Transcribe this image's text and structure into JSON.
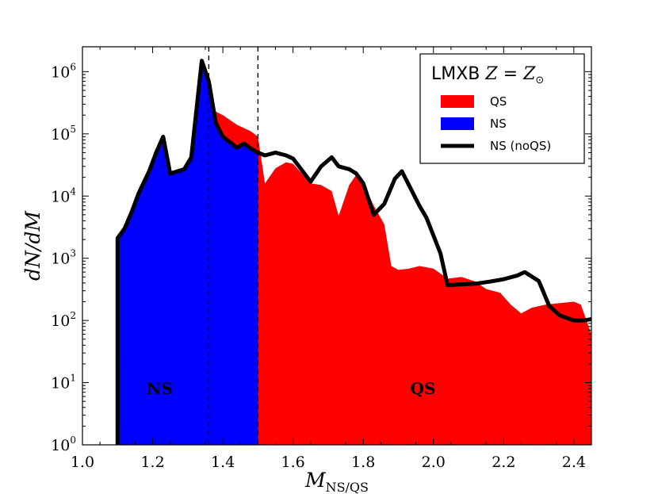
{
  "chart_data": {
    "type": "area",
    "xlabel_main": "M",
    "xlabel_sub": "NS/QS",
    "ylabel": "dN/dM",
    "xlim": [
      1.0,
      2.45
    ],
    "ylim_log10": [
      0,
      6.4
    ],
    "yscale": "log",
    "x_ticks": [
      "1.0",
      "1.2",
      "1.4",
      "1.6",
      "1.8",
      "2.0",
      "2.2",
      "2.4"
    ],
    "y_ticks": [
      {
        "base": "10",
        "exp": "0"
      },
      {
        "base": "10",
        "exp": "1"
      },
      {
        "base": "10",
        "exp": "2"
      },
      {
        "base": "10",
        "exp": "3"
      },
      {
        "base": "10",
        "exp": "4"
      },
      {
        "base": "10",
        "exp": "5"
      },
      {
        "base": "10",
        "exp": "6"
      }
    ],
    "legend": {
      "title_prefix": "LMXB",
      "title_math": "Z = Z",
      "title_sub": "⊙",
      "placement": "top-right",
      "entries": [
        {
          "label": "QS",
          "color": "#ff0000",
          "kind": "patch"
        },
        {
          "label": "NS",
          "color": "#0000ff",
          "kind": "patch"
        },
        {
          "label": "NS (noQS)",
          "color": "#000000",
          "kind": "line"
        }
      ]
    },
    "vlines": [
      1.36,
      1.5
    ],
    "region_labels": [
      "NS",
      "QS"
    ],
    "series": [
      {
        "name": "QS",
        "color": "#ff0000",
        "points": [
          [
            1.34,
            1400000.0
          ],
          [
            1.36,
            260000.0
          ],
          [
            1.4,
            200000.0
          ],
          [
            1.44,
            140000.0
          ],
          [
            1.48,
            110000.0
          ],
          [
            1.5,
            90000.0
          ],
          [
            1.52,
            16000.0
          ],
          [
            1.55,
            28000.0
          ],
          [
            1.58,
            35000.0
          ],
          [
            1.6,
            33000.0
          ],
          [
            1.65,
            16000.0
          ],
          [
            1.68,
            15000.0
          ],
          [
            1.71,
            12000.0
          ],
          [
            1.73,
            4800.0
          ],
          [
            1.76,
            15000.0
          ],
          [
            1.78,
            22000.0
          ],
          [
            1.8,
            16000.0
          ],
          [
            1.83,
            7000.0
          ],
          [
            1.86,
            3500.0
          ],
          [
            1.88,
            750.0
          ],
          [
            1.9,
            650.0
          ],
          [
            1.93,
            680.0
          ],
          [
            1.96,
            750.0
          ],
          [
            2.0,
            680.0
          ],
          [
            2.04,
            470.0
          ],
          [
            2.08,
            500.0
          ],
          [
            2.12,
            420.0
          ],
          [
            2.15,
            320.0
          ],
          [
            2.19,
            280.0
          ],
          [
            2.22,
            180.0
          ],
          [
            2.25,
            130.0
          ],
          [
            2.28,
            160.0
          ],
          [
            2.32,
            180.0
          ],
          [
            2.36,
            190.0
          ],
          [
            2.4,
            200.0
          ],
          [
            2.42,
            180.0
          ],
          [
            2.45,
            60
          ]
        ]
      },
      {
        "name": "NS",
        "color": "#0000ff",
        "points": [
          [
            1.1,
            2100.0
          ],
          [
            1.12,
            3000.0
          ],
          [
            1.14,
            5500.0
          ],
          [
            1.16,
            11000.0
          ],
          [
            1.19,
            25000.0
          ],
          [
            1.21,
            50000.0
          ],
          [
            1.23,
            90000.0
          ],
          [
            1.25,
            23000.0
          ],
          [
            1.29,
            27000.0
          ],
          [
            1.31,
            42000.0
          ],
          [
            1.34,
            1500000.0
          ],
          [
            1.36,
            700000.0
          ],
          [
            1.38,
            150000.0
          ],
          [
            1.4,
            90000.0
          ],
          [
            1.44,
            60000.0
          ],
          [
            1.46,
            70000.0
          ],
          [
            1.48,
            58000.0
          ],
          [
            1.5,
            50000.0
          ]
        ]
      },
      {
        "name": "NS (noQS)",
        "color": "#000000",
        "points": [
          [
            1.1,
            2100.0
          ],
          [
            1.12,
            3000.0
          ],
          [
            1.14,
            5500.0
          ],
          [
            1.16,
            11000.0
          ],
          [
            1.19,
            25000.0
          ],
          [
            1.21,
            50000.0
          ],
          [
            1.23,
            90000.0
          ],
          [
            1.25,
            23000.0
          ],
          [
            1.29,
            27000.0
          ],
          [
            1.31,
            42000.0
          ],
          [
            1.34,
            1500000.0
          ],
          [
            1.36,
            700000.0
          ],
          [
            1.38,
            150000.0
          ],
          [
            1.4,
            90000.0
          ],
          [
            1.44,
            60000.0
          ],
          [
            1.46,
            70000.0
          ],
          [
            1.48,
            58000.0
          ],
          [
            1.5,
            50000.0
          ],
          [
            1.52,
            45000.0
          ],
          [
            1.55,
            50000.0
          ],
          [
            1.58,
            45000.0
          ],
          [
            1.6,
            40000.0
          ],
          [
            1.65,
            17000.0
          ],
          [
            1.68,
            30000.0
          ],
          [
            1.71,
            42000.0
          ],
          [
            1.73,
            30000.0
          ],
          [
            1.76,
            27000.0
          ],
          [
            1.78,
            23000.0
          ],
          [
            1.8,
            16000.0
          ],
          [
            1.83,
            5000.0
          ],
          [
            1.86,
            7500.0
          ],
          [
            1.89,
            19000.0
          ],
          [
            1.91,
            25000.0
          ],
          [
            1.93,
            15000.0
          ],
          [
            1.96,
            7000.0
          ],
          [
            1.98,
            4500.0
          ],
          [
            2.02,
            1200.0
          ],
          [
            2.04,
            370.0
          ],
          [
            2.08,
            380.0
          ],
          [
            2.12,
            390.0
          ],
          [
            2.16,
            420.0
          ],
          [
            2.2,
            460.0
          ],
          [
            2.24,
            530.0
          ],
          [
            2.26,
            600.0
          ],
          [
            2.3,
            430.0
          ],
          [
            2.33,
            170.0
          ],
          [
            2.36,
            120.0
          ],
          [
            2.4,
            100.0
          ],
          [
            2.43,
            100.0
          ],
          [
            2.45,
            105.0
          ]
        ]
      }
    ]
  }
}
